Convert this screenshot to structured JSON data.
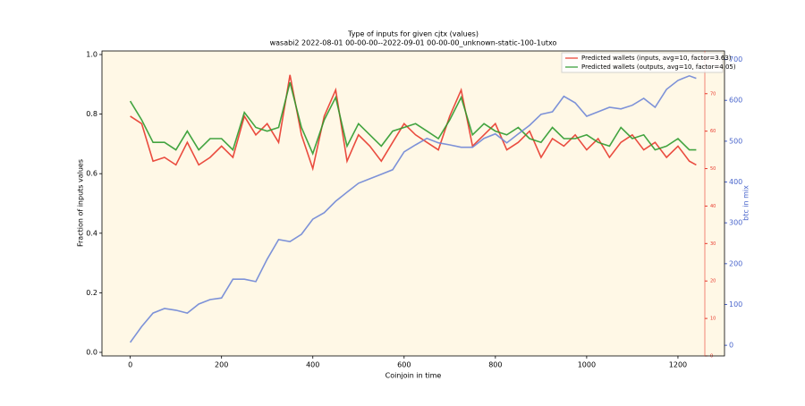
{
  "chart_data": {
    "type": "line",
    "title": "Type of inputs for given cjtx (values)",
    "subtitle": "wasabi2 2022-08-01 00-00-00--2022-09-01 00-00-00_unknown-static-100-1utxo",
    "x_label": "Coinjoin in time",
    "y_label": "Fraction of inputs values",
    "y2_label": "btc in mix",
    "x": [
      0,
      25,
      50,
      75,
      100,
      125,
      150,
      175,
      200,
      225,
      250,
      275,
      300,
      325,
      350,
      375,
      400,
      425,
      450,
      475,
      500,
      525,
      550,
      575,
      600,
      625,
      650,
      675,
      700,
      725,
      750,
      775,
      800,
      825,
      850,
      875,
      900,
      925,
      950,
      975,
      1000,
      1025,
      1050,
      1075,
      1100,
      1125,
      1150,
      1175,
      1200,
      1225,
      1240
    ],
    "xlim": [
      -62,
      1302
    ],
    "xticks": [
      0,
      200,
      400,
      600,
      800,
      1000,
      1200
    ],
    "ylim": [
      -0.012,
      1.012
    ],
    "yticks": [
      {
        "value": 0,
        "label": "0.0"
      },
      {
        "value": 0.2,
        "label": "0.2"
      },
      {
        "value": 0.4,
        "label": "0.4"
      },
      {
        "value": 0.6,
        "label": "0.6"
      },
      {
        "value": 0.8,
        "label": "0.8"
      },
      {
        "value": 1,
        "label": "1.0"
      }
    ],
    "y2lim": [
      -26,
      721
    ],
    "y2ticks": [
      0,
      100,
      200,
      300,
      400,
      500,
      600,
      700
    ],
    "y3lim": [
      0,
      81.4
    ],
    "y3ticks": [
      0,
      10,
      20,
      30,
      40,
      50,
      60,
      70
    ],
    "legend": "upper right",
    "series": [
      {
        "name": "Predicted wallets (inputs, avg=10, factor=3.63)",
        "color": "#e8392c",
        "axis": "y3",
        "values": [
          64,
          62,
          52,
          53,
          51,
          57,
          51,
          53,
          56,
          53,
          64,
          59,
          62,
          57,
          75,
          59,
          50,
          64,
          71,
          52,
          59,
          56,
          52,
          57,
          62,
          59,
          57,
          55,
          64,
          71,
          56,
          59,
          62,
          55,
          57,
          60,
          53,
          58,
          56,
          59,
          55,
          58,
          53,
          57,
          59,
          55,
          57,
          53,
          56,
          52,
          51
        ]
      },
      {
        "name": "Predicted wallets (outputs, avg=10, factor=4.05)",
        "color": "#2e9a2e",
        "axis": "y3",
        "values": [
          68,
          63,
          57,
          57,
          55,
          60,
          55,
          58,
          58,
          55,
          65,
          61,
          60,
          61,
          73,
          61,
          54,
          63,
          69,
          56,
          62,
          59,
          56,
          60,
          61,
          62,
          60,
          58,
          63,
          69,
          59,
          62,
          60,
          59,
          61,
          58,
          57,
          61,
          58,
          58,
          59,
          57,
          56,
          61,
          58,
          59,
          55,
          56,
          58,
          55,
          55
        ]
      },
      {
        "name": "btc in mix",
        "color": "#6f86d6",
        "axis": "y2",
        "values": [
          7,
          46,
          79,
          90,
          86,
          79,
          101,
          112,
          116,
          162,
          162,
          156,
          211,
          259,
          254,
          272,
          309,
          325,
          353,
          375,
          397,
          408,
          419,
          430,
          474,
          491,
          507,
          496,
          491,
          485,
          485,
          507,
          518,
          496,
          518,
          539,
          566,
          572,
          610,
          594,
          561,
          572,
          583,
          579,
          588,
          605,
          583,
          627,
          649,
          660,
          654
        ]
      }
    ]
  }
}
